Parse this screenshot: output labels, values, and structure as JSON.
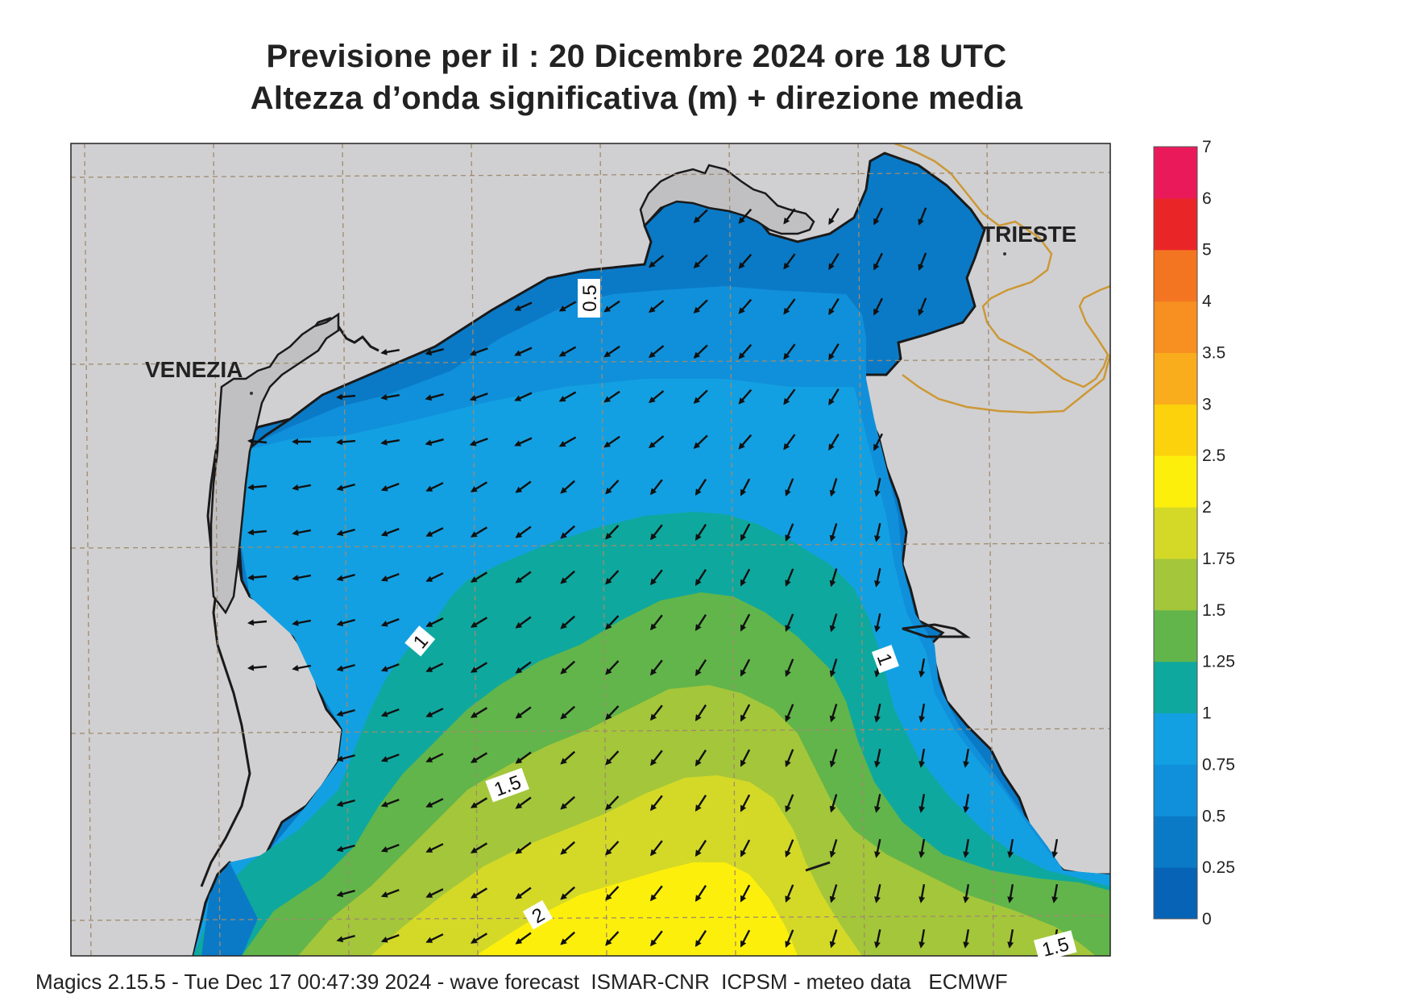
{
  "title_line1": "Previsione per il  :  20 Dicembre  2024   ore 18 UTC",
  "title_line2": "Altezza d’onda significativa (m) + direzione media",
  "cities": {
    "venezia": "VENEZIA",
    "trieste": "TRIESTE"
  },
  "contour_labels": {
    "c05": "0.5",
    "c1a": "1",
    "c1b": "1",
    "c15a": "1.5",
    "c15b": "1.5",
    "c2": "2"
  },
  "legend": {
    "ticks": [
      "0",
      "0.25",
      "0.5",
      "0.75",
      "1",
      "1.25",
      "1.5",
      "1.75",
      "2",
      "2.5",
      "3",
      "3.5",
      "4",
      "5",
      "6",
      "7"
    ],
    "colors": [
      "#0763b6",
      "#0a7ac7",
      "#1090da",
      "#13a0e2",
      "#0fa89e",
      "#62b54a",
      "#a4c63a",
      "#d4d928",
      "#fdef0c",
      "#fcd20c",
      "#f9ad1c",
      "#f78f21",
      "#f37521",
      "#ea2527",
      "#ea1a5a"
    ]
  },
  "colors": {
    "land": "#d0d0d2",
    "coast": "#1a1a1a",
    "border": "#cd9836",
    "grid": "#a08a6e"
  },
  "footer": "Magics 2.15.5 - Tue Dec 17 00:47:39 2024 - wave forecast  ISMAR-CNR  ICPSM - meteo data   ECMWF"
}
